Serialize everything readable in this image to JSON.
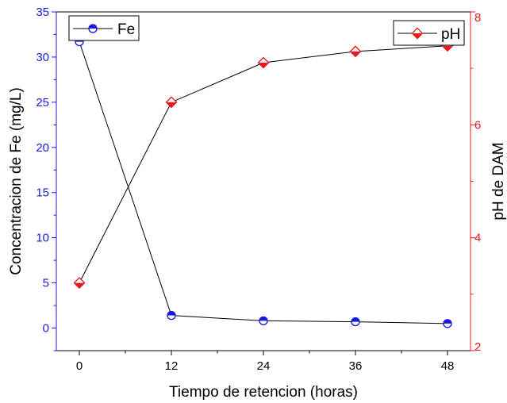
{
  "chart_data": {
    "type": "line",
    "x": [
      0,
      12,
      24,
      36,
      48
    ],
    "xlabel": "Tiempo de retencion (horas)",
    "xticks": [
      "0",
      "12",
      "24",
      "36",
      "48"
    ],
    "xlim": [
      -3,
      51
    ],
    "ylabel_left": "Concentracion de Fe (mg/L)",
    "ylim_left": [
      -2.5,
      35
    ],
    "yticks_left": [
      "0",
      "5",
      "10",
      "15",
      "20",
      "25",
      "30",
      "35"
    ],
    "ylabel_right": "pH de DAM",
    "ylim_right": [
      2,
      8
    ],
    "yticks_right": [
      "2",
      "4",
      "6",
      "8"
    ],
    "left_axis_color": "#1a1adb",
    "right_axis_color": "#e8191a",
    "grid": false,
    "series": [
      {
        "name": "Fe",
        "axis": "left",
        "values": [
          31.7,
          1.4,
          0.8,
          0.7,
          0.5
        ],
        "marker": "half-filled-circle",
        "color": "#1a1adb",
        "legend_position": "top-left"
      },
      {
        "name": "pH",
        "axis": "right",
        "values": [
          3.2,
          6.4,
          7.1,
          7.3,
          7.4
        ],
        "marker": "half-filled-diamond",
        "color": "#e8191a",
        "legend_position": "top-right"
      }
    ]
  }
}
